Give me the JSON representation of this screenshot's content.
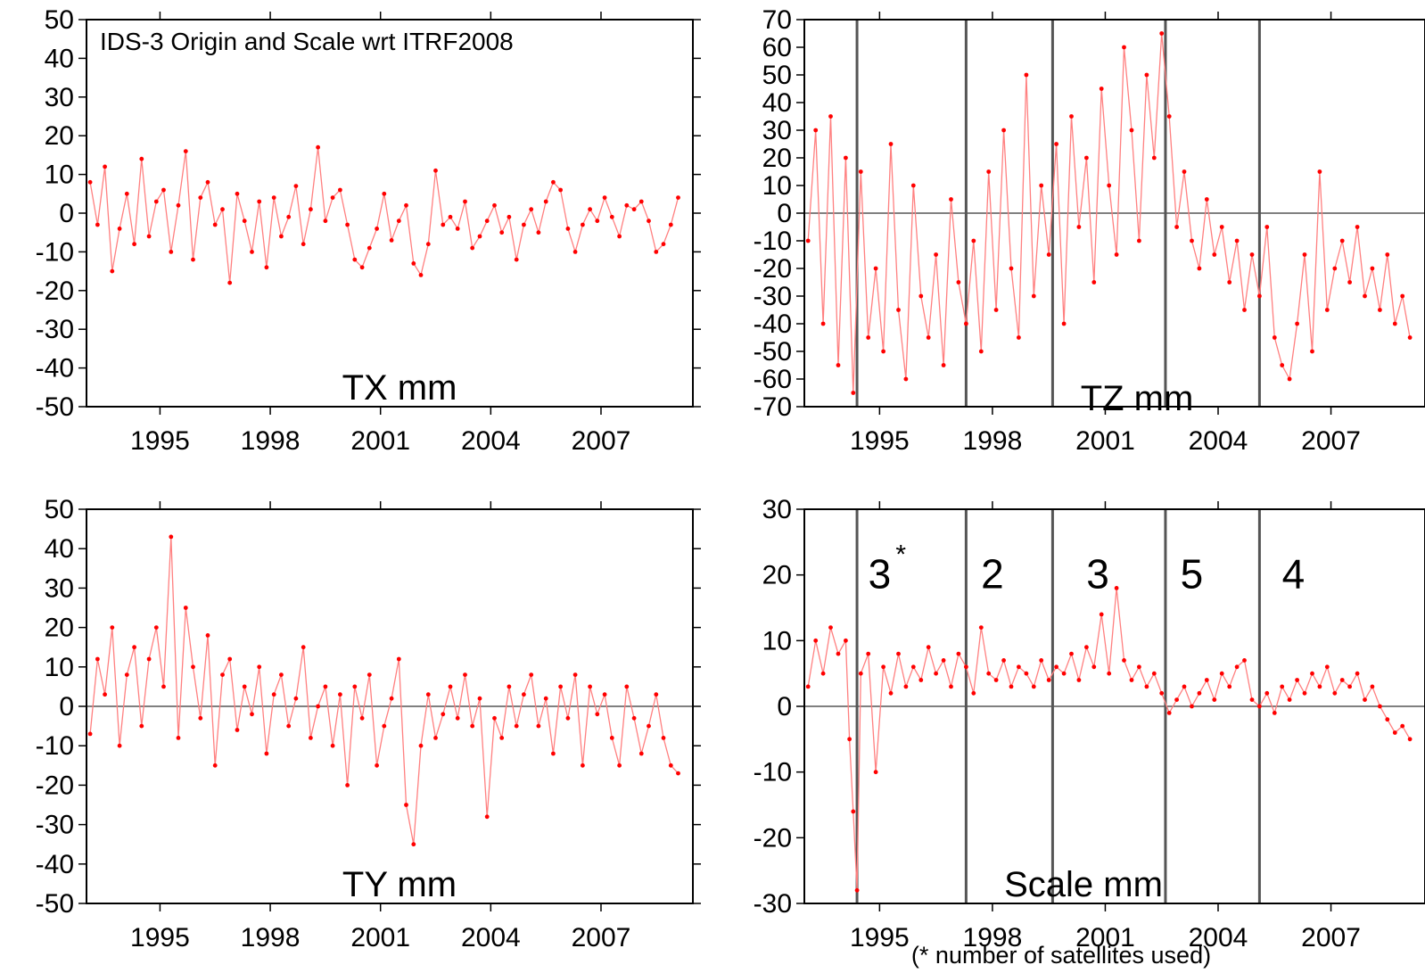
{
  "figure_title": "IDS-3 Origin and Scale wrt ITRF2008",
  "footnote": "(* number of satellites used)",
  "colors": {
    "series": "#ff0000",
    "series_line": "#ff8080",
    "axes": "#000000",
    "boundary": "#555555"
  },
  "chart_data": [
    {
      "type": "line",
      "id": "tx",
      "title": "IDS-3 Origin and Scale wrt ITRF2008",
      "panel_label": "TX mm",
      "xlim": [
        1993.0,
        2009.5
      ],
      "ylim": [
        -50,
        50
      ],
      "yticks": [
        -50,
        -40,
        -30,
        -20,
        -10,
        0,
        10,
        20,
        30,
        40,
        50
      ],
      "xticks": [
        1995,
        1998,
        2001,
        2004,
        2007
      ],
      "xtick_labels": [
        "1995",
        "1998",
        "2001",
        "2004",
        "2007"
      ],
      "zero_line": false,
      "series": [
        {
          "x": [
            1993.1,
            1993.3,
            1993.5,
            1993.7,
            1993.9,
            1994.1,
            1994.3,
            1994.5,
            1994.7,
            1994.9,
            1995.1,
            1995.3,
            1995.5,
            1995.7,
            1995.9,
            1996.1,
            1996.3,
            1996.5,
            1996.7,
            1996.9,
            1997.1,
            1997.3,
            1997.5,
            1997.7,
            1997.9,
            1998.1,
            1998.3,
            1998.5,
            1998.7,
            1998.9,
            1999.1,
            1999.3,
            1999.5,
            1999.7,
            1999.9,
            2000.1,
            2000.3,
            2000.5,
            2000.7,
            2000.9,
            2001.1,
            2001.3,
            2001.5,
            2001.7,
            2001.9,
            2002.1,
            2002.3,
            2002.5,
            2002.7,
            2002.9,
            2003.1,
            2003.3,
            2003.5,
            2003.7,
            2003.9,
            2004.1,
            2004.3,
            2004.5,
            2004.7,
            2004.9,
            2005.1,
            2005.3,
            2005.5,
            2005.7,
            2005.9,
            2006.1,
            2006.3,
            2006.5,
            2006.7,
            2006.9,
            2007.1,
            2007.3,
            2007.5,
            2007.7,
            2007.9,
            2008.1,
            2008.3,
            2008.5,
            2008.7,
            2008.9,
            2009.1
          ],
          "y": [
            8,
            -3,
            12,
            -15,
            -4,
            5,
            -8,
            14,
            -6,
            3,
            6,
            -10,
            2,
            16,
            -12,
            4,
            8,
            -3,
            1,
            -18,
            5,
            -2,
            -10,
            3,
            -14,
            4,
            -6,
            -1,
            7,
            -8,
            1,
            17,
            -2,
            4,
            6,
            -3,
            -12,
            -14,
            -9,
            -4,
            5,
            -7,
            -2,
            2,
            -13,
            -16,
            -8,
            11,
            -3,
            -1,
            -4,
            3,
            -9,
            -6,
            -2,
            2,
            -5,
            -1,
            -12,
            -3,
            1,
            -5,
            3,
            8,
            6,
            -4,
            -10,
            -3,
            1,
            -2,
            4,
            -1,
            -6,
            2,
            1,
            3,
            -2,
            -10,
            -8,
            -3,
            4
          ]
        }
      ]
    },
    {
      "type": "line",
      "id": "tz",
      "title": "",
      "panel_label": "TZ mm",
      "xlim": [
        1993.0,
        2009.5
      ],
      "ylim": [
        -70,
        70
      ],
      "yticks": [
        -70,
        -60,
        -50,
        -40,
        -30,
        -20,
        -10,
        0,
        10,
        20,
        30,
        40,
        50,
        60,
        70
      ],
      "xticks": [
        1995,
        1998,
        2001,
        2004,
        2007
      ],
      "xtick_labels": [
        "1995",
        "1998",
        "2001",
        "2004",
        "2007"
      ],
      "zero_line": true,
      "boundaries": [
        1994.4,
        1997.3,
        1999.6,
        2002.6,
        2005.1
      ],
      "series": [
        {
          "x": [
            1993.1,
            1993.3,
            1993.5,
            1993.7,
            1993.9,
            1994.1,
            1994.3,
            1994.5,
            1994.7,
            1994.9,
            1995.1,
            1995.3,
            1995.5,
            1995.7,
            1995.9,
            1996.1,
            1996.3,
            1996.5,
            1996.7,
            1996.9,
            1997.1,
            1997.3,
            1997.5,
            1997.7,
            1997.9,
            1998.1,
            1998.3,
            1998.5,
            1998.7,
            1998.9,
            1999.1,
            1999.3,
            1999.5,
            1999.7,
            1999.9,
            2000.1,
            2000.3,
            2000.5,
            2000.7,
            2000.9,
            2001.1,
            2001.3,
            2001.5,
            2001.7,
            2001.9,
            2002.1,
            2002.3,
            2002.5,
            2002.7,
            2002.9,
            2003.1,
            2003.3,
            2003.5,
            2003.7,
            2003.9,
            2004.1,
            2004.3,
            2004.5,
            2004.7,
            2004.9,
            2005.1,
            2005.3,
            2005.5,
            2005.7,
            2005.9,
            2006.1,
            2006.3,
            2006.5,
            2006.7,
            2006.9,
            2007.1,
            2007.3,
            2007.5,
            2007.7,
            2007.9,
            2008.1,
            2008.3,
            2008.5,
            2008.7,
            2008.9,
            2009.1
          ],
          "y": [
            -10,
            30,
            -40,
            35,
            -55,
            20,
            -65,
            15,
            -45,
            -20,
            -50,
            25,
            -35,
            -60,
            10,
            -30,
            -45,
            -15,
            -55,
            5,
            -25,
            -40,
            -10,
            -50,
            15,
            -35,
            30,
            -20,
            -45,
            50,
            -30,
            10,
            -15,
            25,
            -40,
            35,
            -5,
            20,
            -25,
            45,
            10,
            -15,
            60,
            30,
            -10,
            50,
            20,
            65,
            35,
            -5,
            15,
            -10,
            -20,
            5,
            -15,
            -5,
            -25,
            -10,
            -35,
            -15,
            -30,
            -5,
            -45,
            -55,
            -60,
            -40,
            -15,
            -50,
            15,
            -35,
            -20,
            -10,
            -25,
            -5,
            -30,
            -20,
            -35,
            -15,
            -40,
            -30,
            -45
          ]
        }
      ]
    },
    {
      "type": "line",
      "id": "ty",
      "title": "",
      "panel_label": "TY mm",
      "xlim": [
        1993.0,
        2009.5
      ],
      "ylim": [
        -50,
        50
      ],
      "yticks": [
        -50,
        -40,
        -30,
        -20,
        -10,
        0,
        10,
        20,
        30,
        40,
        50
      ],
      "xticks": [
        1995,
        1998,
        2001,
        2004,
        2007
      ],
      "xtick_labels": [
        "1995",
        "1998",
        "2001",
        "2004",
        "2007"
      ],
      "zero_line": true,
      "series": [
        {
          "x": [
            1993.1,
            1993.3,
            1993.5,
            1993.7,
            1993.9,
            1994.1,
            1994.3,
            1994.5,
            1994.7,
            1994.9,
            1995.1,
            1995.3,
            1995.5,
            1995.7,
            1995.9,
            1996.1,
            1996.3,
            1996.5,
            1996.7,
            1996.9,
            1997.1,
            1997.3,
            1997.5,
            1997.7,
            1997.9,
            1998.1,
            1998.3,
            1998.5,
            1998.7,
            1998.9,
            1999.1,
            1999.3,
            1999.5,
            1999.7,
            1999.9,
            2000.1,
            2000.3,
            2000.5,
            2000.7,
            2000.9,
            2001.1,
            2001.3,
            2001.5,
            2001.7,
            2001.9,
            2002.1,
            2002.3,
            2002.5,
            2002.7,
            2002.9,
            2003.1,
            2003.3,
            2003.5,
            2003.7,
            2003.9,
            2004.1,
            2004.3,
            2004.5,
            2004.7,
            2004.9,
            2005.1,
            2005.3,
            2005.5,
            2005.7,
            2005.9,
            2006.1,
            2006.3,
            2006.5,
            2006.7,
            2006.9,
            2007.1,
            2007.3,
            2007.5,
            2007.7,
            2007.9,
            2008.1,
            2008.3,
            2008.5,
            2008.7,
            2008.9,
            2009.1
          ],
          "y": [
            -7,
            12,
            3,
            20,
            -10,
            8,
            15,
            -5,
            12,
            20,
            5,
            43,
            -8,
            25,
            10,
            -3,
            18,
            -15,
            8,
            12,
            -6,
            5,
            -2,
            10,
            -12,
            3,
            8,
            -5,
            2,
            15,
            -8,
            0,
            5,
            -10,
            3,
            -20,
            5,
            -3,
            8,
            -15,
            -5,
            2,
            12,
            -25,
            -35,
            -10,
            3,
            -8,
            -2,
            5,
            -3,
            8,
            -5,
            2,
            -28,
            -3,
            -8,
            5,
            -5,
            3,
            8,
            -5,
            2,
            -12,
            5,
            -3,
            8,
            -15,
            5,
            -2,
            3,
            -8,
            -15,
            5,
            -3,
            -12,
            -5,
            3,
            -8,
            -15,
            -17
          ]
        }
      ]
    },
    {
      "type": "line",
      "id": "scale",
      "title": "",
      "panel_label": "Scale mm",
      "xlim": [
        1993.0,
        2009.5
      ],
      "ylim": [
        -30,
        30
      ],
      "yticks": [
        -30,
        -20,
        -10,
        0,
        10,
        20,
        30
      ],
      "xticks": [
        1995,
        1998,
        2001,
        2004,
        2007
      ],
      "xtick_labels": [
        "1995",
        "1998",
        "2001",
        "2004",
        "2007"
      ],
      "zero_line": true,
      "boundaries": [
        1994.4,
        1997.3,
        1999.6,
        2002.6,
        2005.1
      ],
      "annotations": [
        {
          "text": "3",
          "superscript": "*",
          "x": 1995.0,
          "y": 18
        },
        {
          "text": "2",
          "x": 1998.0,
          "y": 18
        },
        {
          "text": "3",
          "x": 2000.8,
          "y": 18
        },
        {
          "text": "5",
          "x": 2003.3,
          "y": 18
        },
        {
          "text": "4",
          "x": 2006.0,
          "y": 18
        }
      ],
      "series": [
        {
          "x": [
            1993.1,
            1993.3,
            1993.5,
            1993.7,
            1993.9,
            1994.1,
            1994.2,
            1994.3,
            1994.4,
            1994.5,
            1994.7,
            1994.9,
            1995.1,
            1995.3,
            1995.5,
            1995.7,
            1995.9,
            1996.1,
            1996.3,
            1996.5,
            1996.7,
            1996.9,
            1997.1,
            1997.3,
            1997.5,
            1997.7,
            1997.9,
            1998.1,
            1998.3,
            1998.5,
            1998.7,
            1998.9,
            1999.1,
            1999.3,
            1999.5,
            1999.7,
            1999.9,
            2000.1,
            2000.3,
            2000.5,
            2000.7,
            2000.9,
            2001.1,
            2001.3,
            2001.5,
            2001.7,
            2001.9,
            2002.1,
            2002.3,
            2002.5,
            2002.7,
            2002.9,
            2003.1,
            2003.3,
            2003.5,
            2003.7,
            2003.9,
            2004.1,
            2004.3,
            2004.5,
            2004.7,
            2004.9,
            2005.1,
            2005.3,
            2005.5,
            2005.7,
            2005.9,
            2006.1,
            2006.3,
            2006.5,
            2006.7,
            2006.9,
            2007.1,
            2007.3,
            2007.5,
            2007.7,
            2007.9,
            2008.1,
            2008.3,
            2008.5,
            2008.7,
            2008.9,
            2009.1
          ],
          "y": [
            3,
            10,
            5,
            12,
            8,
            10,
            -5,
            -16,
            -28,
            5,
            8,
            -10,
            6,
            2,
            8,
            3,
            6,
            4,
            9,
            5,
            7,
            3,
            8,
            6,
            2,
            12,
            5,
            4,
            7,
            3,
            6,
            5,
            3,
            7,
            4,
            6,
            5,
            8,
            4,
            9,
            6,
            14,
            5,
            18,
            7,
            4,
            6,
            3,
            5,
            2,
            -1,
            1,
            3,
            0,
            2,
            4,
            1,
            5,
            3,
            6,
            7,
            1,
            0,
            2,
            -1,
            3,
            1,
            4,
            2,
            5,
            3,
            6,
            2,
            4,
            3,
            5,
            1,
            3,
            0,
            -2,
            -4,
            -3,
            -5
          ]
        }
      ]
    }
  ]
}
